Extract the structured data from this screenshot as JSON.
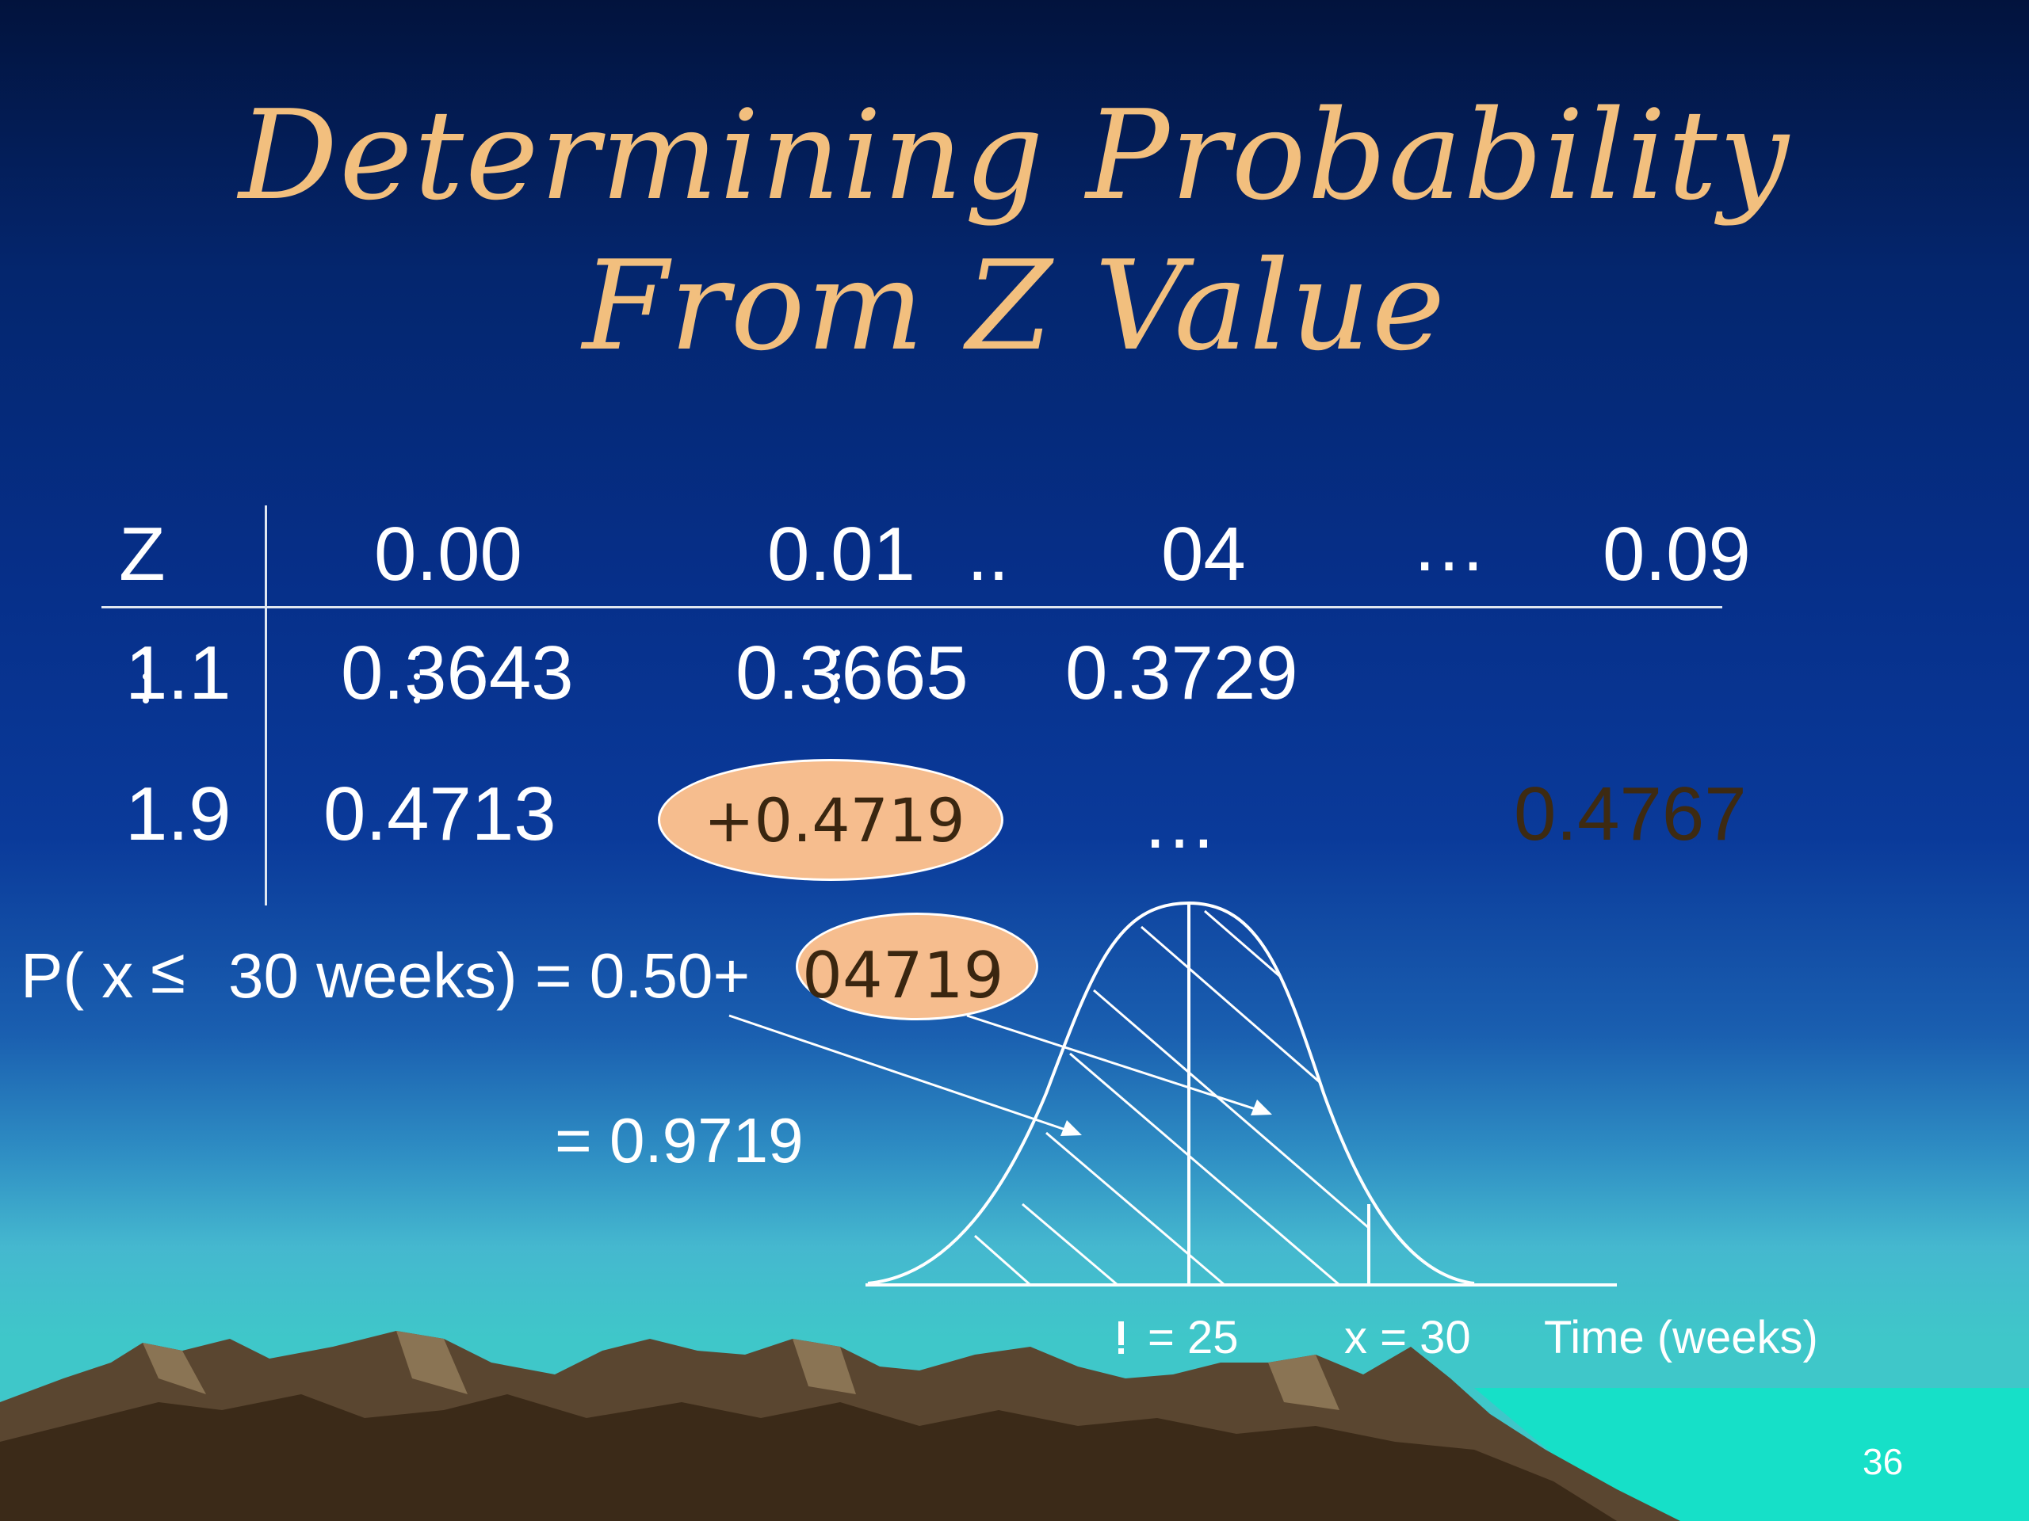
{
  "slide": {
    "title_line1": "Determining Probability",
    "title_line2": "From Z Value",
    "page_number": "36"
  },
  "table": {
    "header": {
      "z": "Z",
      "c1": "0.00",
      "c2": "0.01",
      "dots1": "..",
      "c3": "04",
      "ellipsis": "…",
      "c4": "0.09"
    },
    "row1": {
      "z": "1.1",
      "v1": "0.3643",
      "v2": "0.3665",
      "v3": "0.3729"
    },
    "row2": {
      "z": "1.9",
      "v1": "0.4713",
      "v2": "+0.4719",
      "ellipsis": "…",
      "v4": "0.4767"
    }
  },
  "equation": {
    "line1_prefix": "P( x",
    "leq": "≤",
    "line1_suffix": "30 weeks) = 0.50+",
    "highlight": "04719",
    "line2": "= 0.9719"
  },
  "curve": {
    "mu_label": "= 25",
    "x_label": "x = 30",
    "axis_label": "Time (weeks)"
  },
  "colors": {
    "title": "#f2bf7e",
    "highlight_fill": "#f6bd8e",
    "text": "#ffffff"
  }
}
